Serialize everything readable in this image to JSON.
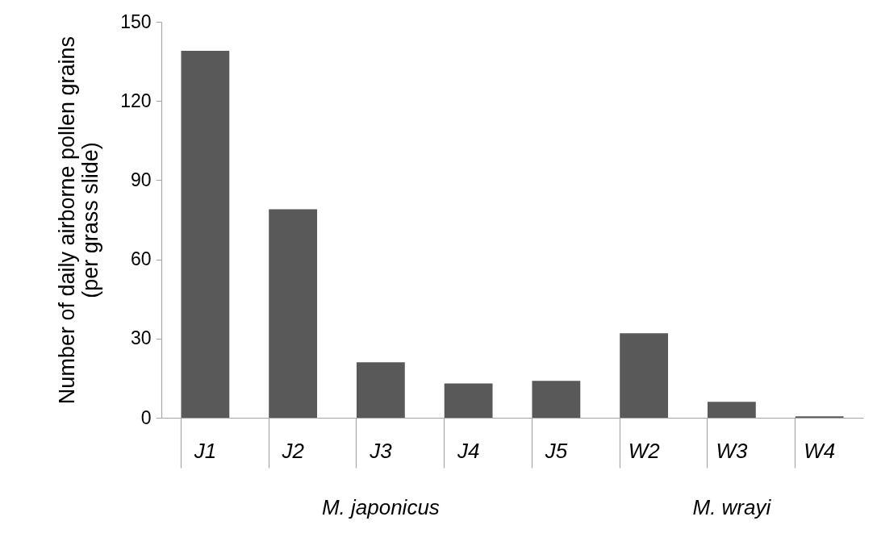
{
  "chart_data": {
    "type": "bar",
    "ylabel": "Number of daily airborne pollen grains\n(per grass slide)",
    "categories": [
      "J1",
      "J2",
      "J3",
      "J4",
      "J5",
      "W2",
      "W3",
      "W4"
    ],
    "values": [
      139,
      79,
      21,
      13,
      14,
      32,
      6,
      0.5
    ],
    "color": "#595959",
    "ylim": [
      0,
      150
    ],
    "yticks": [
      0,
      30,
      60,
      90,
      120,
      150
    ],
    "grid": false,
    "annotations": [
      "M. japonicus",
      "M. wrayi"
    ]
  }
}
